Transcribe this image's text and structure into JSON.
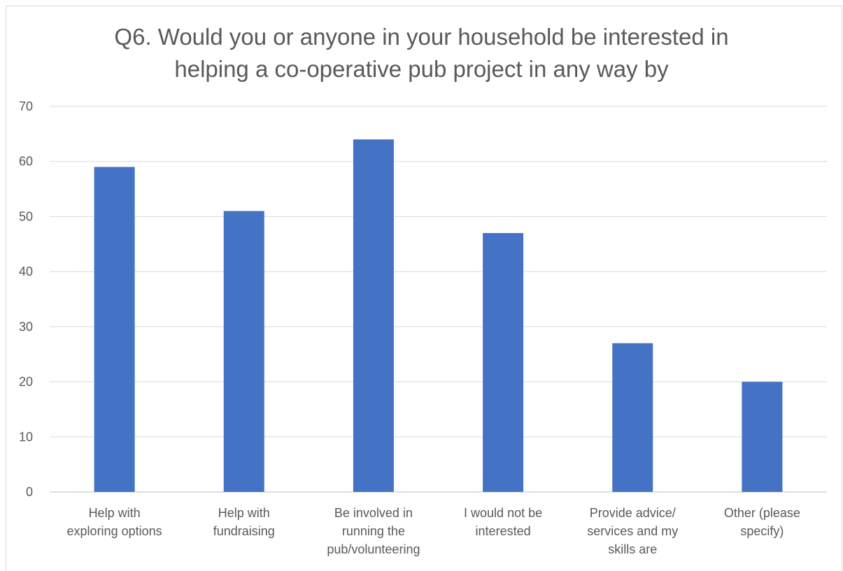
{
  "chart_data": {
    "type": "bar",
    "title_lines": [
      "Q6. Would you or anyone in your household be interested in",
      "helping a co-operative pub project in any way by"
    ],
    "categories": [
      [
        "Help with",
        "exploring options"
      ],
      [
        "Help with",
        "fundraising"
      ],
      [
        "Be involved in",
        "running the",
        "pub/volunteering"
      ],
      [
        "I would not be",
        "interested"
      ],
      [
        "Provide advice/",
        "services and my",
        "skills are"
      ],
      [
        "Other (please",
        "specify)"
      ]
    ],
    "values": [
      59,
      51,
      64,
      47,
      27,
      20
    ],
    "ylim": [
      0,
      70
    ],
    "yticks": [
      0,
      10,
      20,
      30,
      40,
      50,
      60,
      70
    ],
    "xlabel": "",
    "ylabel": "",
    "grid": true,
    "legend": "none",
    "bar_color": "#4472c4",
    "grid_color": "#d9d9d9",
    "text_color": "#595959"
  }
}
